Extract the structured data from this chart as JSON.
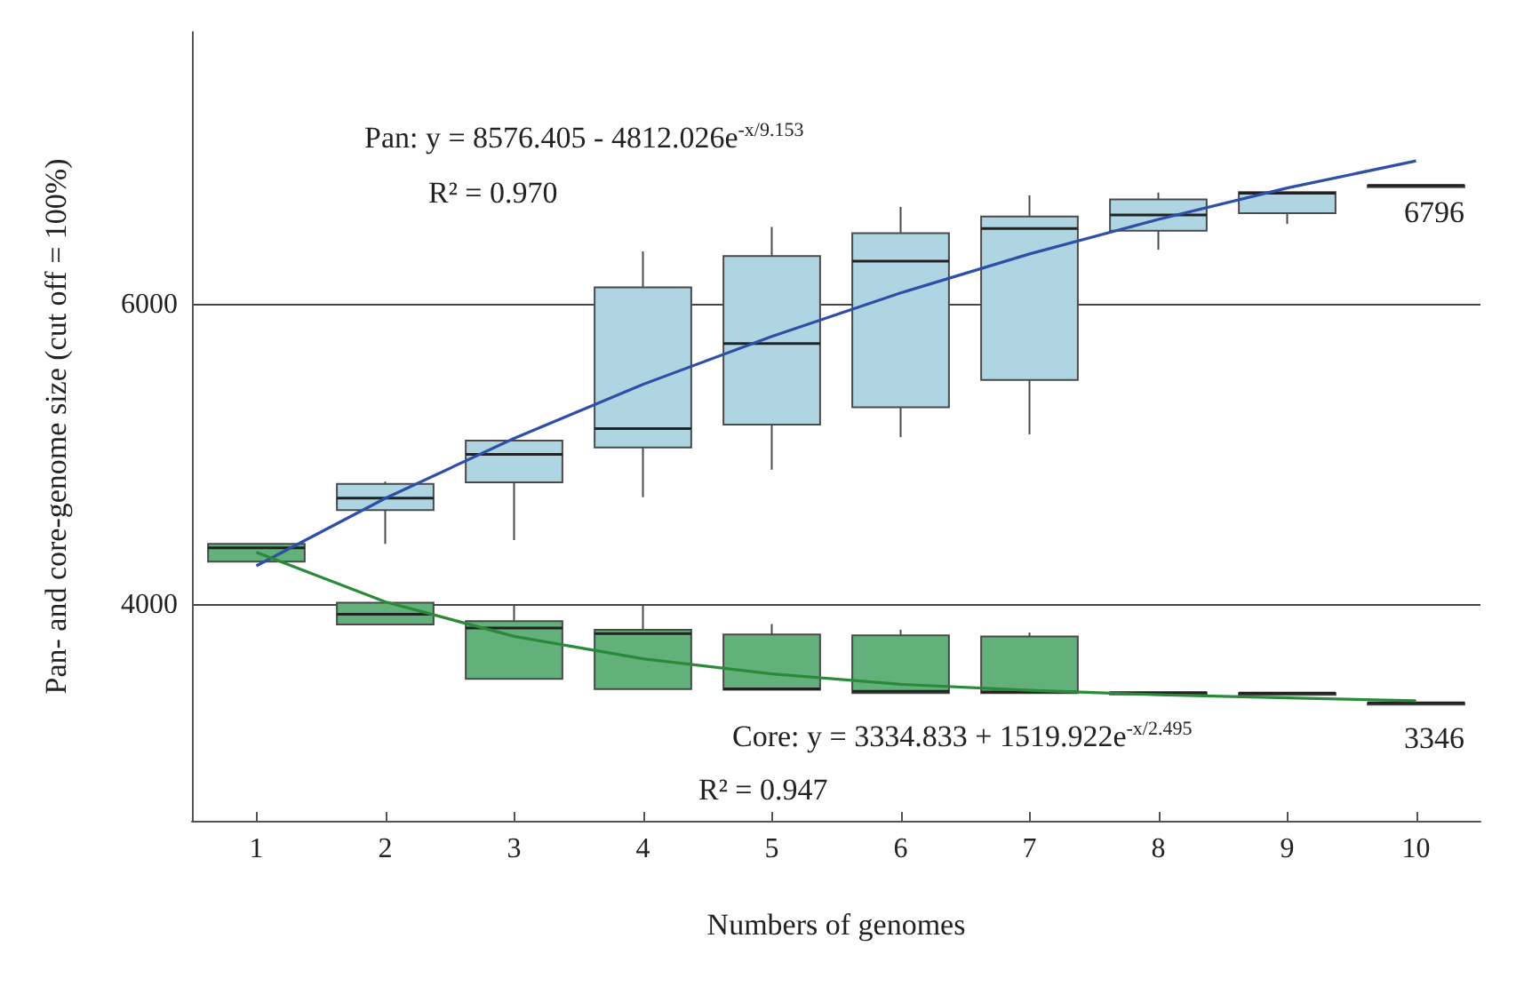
{
  "chart_data": {
    "type": "box",
    "xlabel": "Numbers of genomes",
    "ylabel": "Pan- and core-genome size (cut off = 100%)",
    "categories": [
      "1",
      "2",
      "3",
      "4",
      "5",
      "6",
      "7",
      "8",
      "9",
      "10"
    ],
    "ylim": [
      2560,
      7820
    ],
    "yticks": [
      4000,
      6000
    ],
    "grid": "y",
    "series": [
      {
        "color": "#b0d5e2",
        "boxes": [
          null,
          {
            "low": 4406,
            "q1": 4631,
            "median": 4711,
            "q3": 4806,
            "high": 4821
          },
          {
            "low": 4432,
            "q1": 4817,
            "median": 5004,
            "q3": 5095,
            "high": 5095
          },
          {
            "low": 4718,
            "q1": 5049,
            "median": 5175,
            "q3": 6117,
            "high": 6357
          },
          {
            "low": 4901,
            "q1": 5202,
            "median": 5743,
            "q3": 6326,
            "high": 6520
          },
          {
            "low": 5118,
            "q1": 5317,
            "median": 6292,
            "q3": 6478,
            "high": 6654
          },
          {
            "low": 5137,
            "q1": 5500,
            "median": 6509,
            "q3": 6589,
            "high": 6730
          },
          {
            "low": 6368,
            "q1": 6494,
            "median": 6600,
            "q3": 6703,
            "high": 6749
          },
          {
            "low": 6540,
            "q1": 6612,
            "median": 6745,
            "q3": 6752,
            "high": 6752
          },
          {
            "low": 6796,
            "q1": 6796,
            "median": 6796,
            "q3": 6796,
            "high": 6796
          }
        ]
      },
      {
        "color": "#62b07a",
        "boxes": [
          {
            "low": 4288,
            "q1": 4288,
            "median": 4380,
            "q3": 4406,
            "high": 4406
          },
          {
            "low": 3869,
            "q1": 3869,
            "median": 3937,
            "q3": 4014,
            "high": 4014
          },
          {
            "low": 3506,
            "q1": 3506,
            "median": 3846,
            "q3": 3891,
            "high": 4000
          },
          {
            "low": 3438,
            "q1": 3438,
            "median": 3808,
            "q3": 3834,
            "high": 4000
          },
          {
            "low": 3434,
            "q1": 3434,
            "median": 3440,
            "q3": 3803,
            "high": 3872
          },
          {
            "low": 3411,
            "q1": 3411,
            "median": 3423,
            "q3": 3797,
            "high": 3834
          },
          {
            "low": 3411,
            "q1": 3411,
            "median": 3419,
            "q3": 3789,
            "high": 3815
          },
          {
            "low": 3414,
            "q1": 3414,
            "median": 3414,
            "q3": 3414,
            "high": 3414
          },
          {
            "low": 3411,
            "q1": 3411,
            "median": 3411,
            "q3": 3411,
            "high": 3411
          },
          {
            "low": 3346,
            "q1": 3346,
            "median": 3346,
            "q3": 3346,
            "high": 3346
          }
        ]
      },
      {
        "type": "line",
        "color": "#2e4fa8",
        "x": [
          "1",
          "2",
          "3",
          "4",
          "5",
          "6",
          "7",
          "8",
          "9",
          "10"
        ],
        "values": [
          4260,
          4710,
          5110,
          5470,
          5790,
          6080,
          6340,
          6570,
          6780,
          6960
        ]
      },
      {
        "type": "line",
        "color": "#2a8a3a",
        "x": [
          "1",
          "2",
          "3",
          "4",
          "5",
          "6",
          "7",
          "8",
          "9",
          "10"
        ],
        "values": [
          4350,
          4020,
          3790,
          3640,
          3540,
          3470,
          3430,
          3400,
          3380,
          3360
        ]
      }
    ],
    "annotations": [
      "Pan: y = 8576.405 - 4812.026e$^{-x/9.153}$",
      "R² = 0.970",
      "Core: y = 3334.833 + 1519.922e$^{-x/2.495}$",
      "R² = 0.947",
      "6796",
      "3346"
    ]
  }
}
